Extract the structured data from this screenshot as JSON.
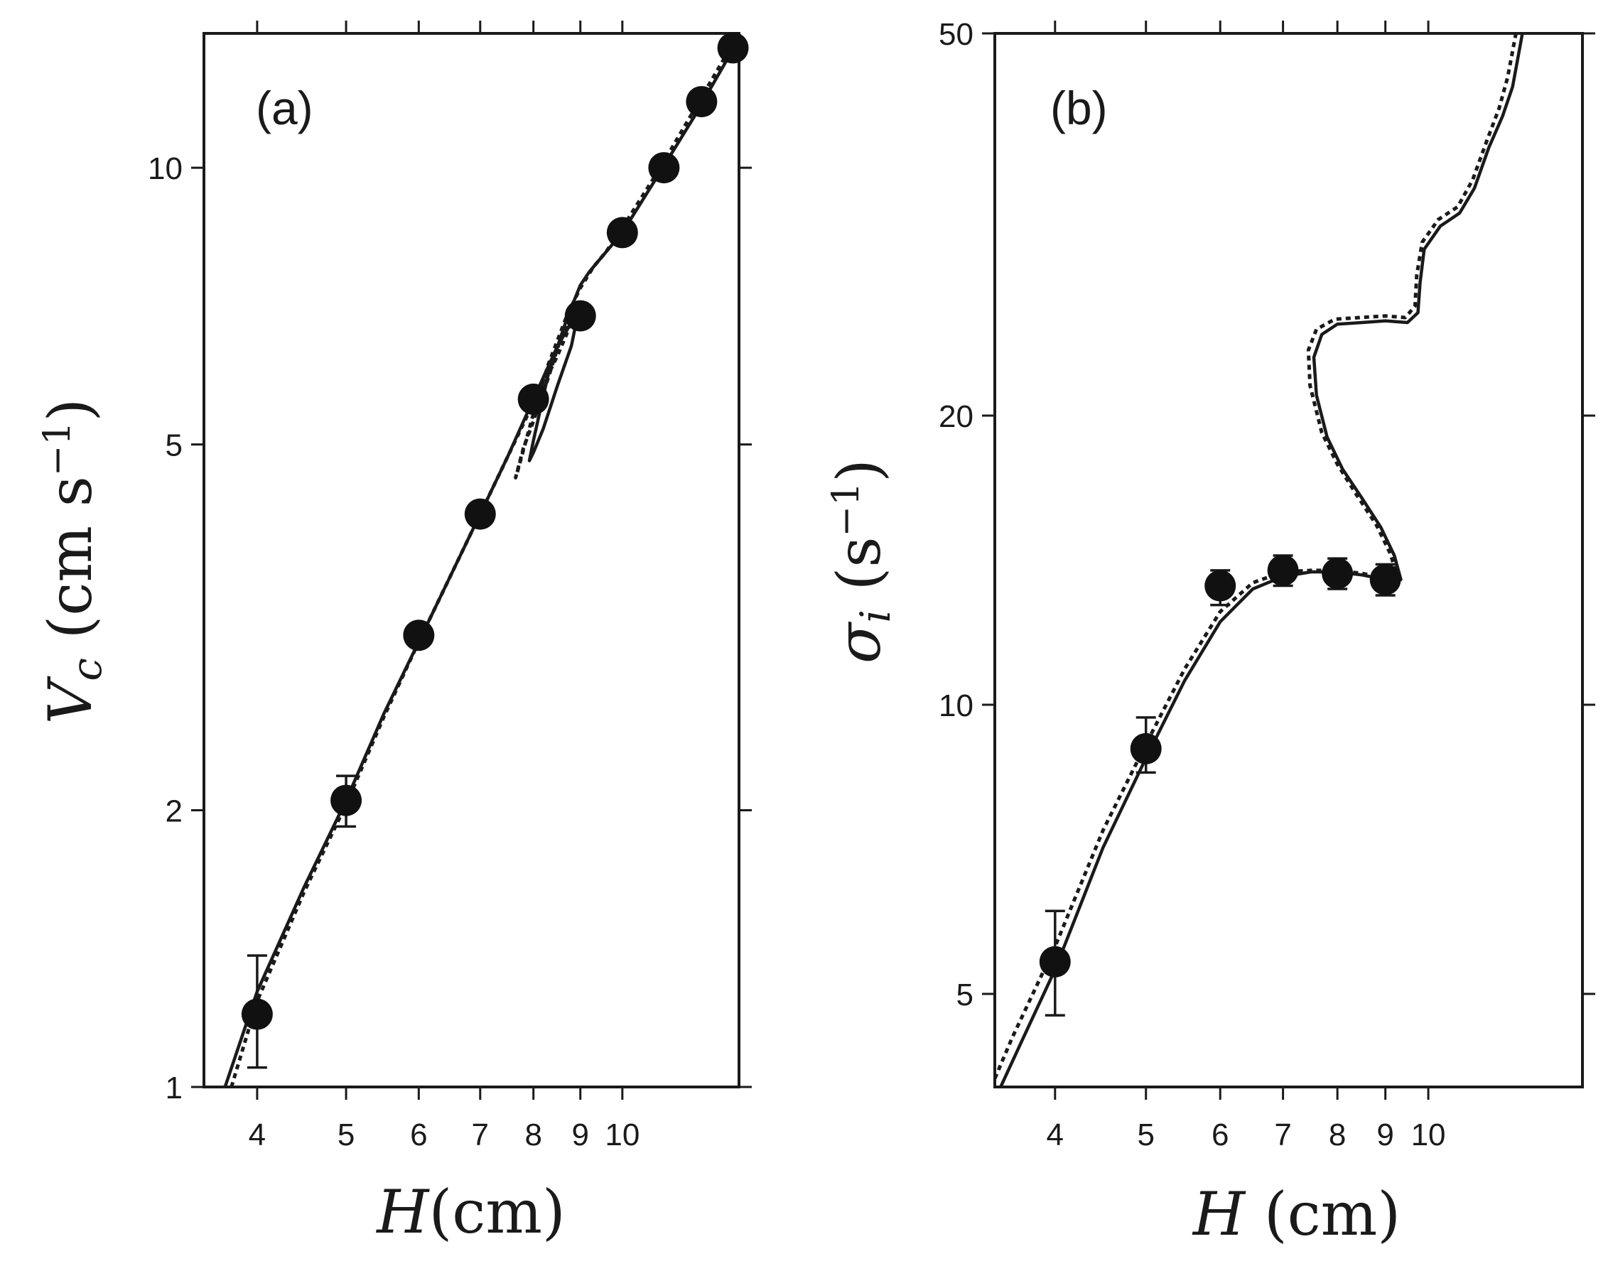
{
  "chart_data": [
    {
      "type": "line",
      "panel_label": "(a)",
      "xscale": "log",
      "yscale": "log",
      "xlim": [
        3.5,
        13.4
      ],
      "ylim": [
        1,
        14
      ],
      "x_ticks": [
        4,
        5,
        6,
        7,
        8,
        9,
        10
      ],
      "x_tick_labels": [
        "4",
        "5",
        "6",
        "7",
        "8",
        "9",
        "10"
      ],
      "y_ticks": [
        1,
        2,
        5,
        10
      ],
      "y_tick_labels": [
        "1",
        "2",
        "5",
        "10"
      ],
      "xlabel": {
        "sym": "H",
        "unit": "(cm)"
      },
      "ylabel": {
        "sym": "V",
        "sub": "c",
        "unit_open": " (cm s",
        "sup": "−1",
        "unit_close": ")"
      },
      "points": [
        {
          "x": 4.0,
          "y": 1.2,
          "err": [
            1.05,
            1.39
          ]
        },
        {
          "x": 5.0,
          "y": 2.05,
          "err": [
            1.92,
            2.18
          ]
        },
        {
          "x": 6.0,
          "y": 3.1
        },
        {
          "x": 7.0,
          "y": 4.2
        },
        {
          "x": 8.0,
          "y": 5.6
        },
        {
          "x": 9.0,
          "y": 6.9
        },
        {
          "x": 10.0,
          "y": 8.5
        },
        {
          "x": 11.1,
          "y": 10.0
        },
        {
          "x": 12.2,
          "y": 11.8
        },
        {
          "x": 13.2,
          "y": 13.5
        }
      ],
      "series": [
        {
          "name": "solid",
          "style": "solid",
          "x": [
            3.69,
            4.0,
            4.5,
            5.0,
            5.5,
            6.0,
            6.5,
            7.0,
            7.5,
            8.0,
            8.5,
            8.85,
            8.95,
            8.8,
            8.5,
            8.2,
            8.0,
            7.92,
            8.0,
            8.3,
            8.7,
            9.0,
            9.2,
            9.5,
            10.0,
            11.0,
            12.0,
            13.0,
            13.4
          ],
          "y": [
            1.0,
            1.27,
            1.65,
            2.05,
            2.55,
            3.05,
            3.6,
            4.2,
            4.85,
            5.6,
            6.4,
            6.85,
            6.95,
            6.4,
            5.8,
            5.2,
            4.9,
            4.8,
            5.05,
            5.95,
            6.85,
            7.45,
            7.7,
            8.0,
            8.5,
            9.9,
            11.4,
            13.1,
            14.0
          ]
        },
        {
          "name": "dotted",
          "style": "dotted",
          "x": [
            3.75,
            4.0,
            4.5,
            5.0,
            5.5,
            6.0,
            6.5,
            7.0,
            7.5,
            8.0,
            8.3,
            8.5,
            8.7,
            8.8,
            8.6,
            8.3,
            8.0,
            7.8,
            7.65,
            7.7,
            8.0,
            8.3,
            8.7,
            9.0,
            9.3,
            9.6,
            10.0,
            11.0,
            12.0,
            13.0,
            13.4
          ],
          "y": [
            1.0,
            1.24,
            1.63,
            2.03,
            2.53,
            3.05,
            3.6,
            4.2,
            4.85,
            5.55,
            5.95,
            6.25,
            6.6,
            6.85,
            6.6,
            5.9,
            5.3,
            4.95,
            4.6,
            4.7,
            5.4,
            6.1,
            6.9,
            7.4,
            7.8,
            8.1,
            8.6,
            10.0,
            11.6,
            13.3,
            14.0
          ]
        }
      ]
    },
    {
      "type": "line",
      "panel_label": "(b)",
      "xscale": "log",
      "yscale": "log",
      "xlim": [
        3.45,
        14.6
      ],
      "ylim": [
        4,
        50
      ],
      "x_ticks": [
        4,
        5,
        6,
        7,
        8,
        9,
        10
      ],
      "x_tick_labels": [
        "4",
        "5",
        "6",
        "7",
        "8",
        "9",
        "10"
      ],
      "y_ticks": [
        5,
        10,
        20,
        50
      ],
      "y_tick_labels": [
        "5",
        "10",
        "20",
        "50"
      ],
      "xlabel": {
        "sym": "H",
        "unit": " (cm)"
      },
      "ylabel": {
        "sym": "σ",
        "sub": "i",
        "unit_open": " (s",
        "sup": "−1",
        "unit_close": ")"
      },
      "points": [
        {
          "x": 4.0,
          "y": 5.4,
          "err": [
            4.75,
            6.1
          ]
        },
        {
          "x": 5.0,
          "y": 9.0,
          "err": [
            8.5,
            9.7
          ]
        },
        {
          "x": 6.0,
          "y": 13.3,
          "err": [
            12.7,
            13.8
          ]
        },
        {
          "x": 7.0,
          "y": 13.8,
          "err": [
            13.3,
            14.3
          ]
        },
        {
          "x": 8.0,
          "y": 13.7,
          "err": [
            13.2,
            14.2
          ]
        },
        {
          "x": 9.0,
          "y": 13.5,
          "err": [
            13.0,
            14.0
          ]
        }
      ],
      "series": [
        {
          "name": "solid",
          "style": "solid",
          "x": [
            3.5,
            3.7,
            4.0,
            4.5,
            5.0,
            5.5,
            6.0,
            6.5,
            7.0,
            7.5,
            8.0,
            8.5,
            9.0,
            9.35,
            9.2,
            8.9,
            8.5,
            8.1,
            7.8,
            7.6,
            7.55,
            7.7,
            8.0,
            8.5,
            9.0,
            9.5,
            9.75,
            9.8,
            9.9,
            10.3,
            10.8,
            11.2,
            11.6,
            12.0,
            12.3,
            12.6
          ],
          "y": [
            4.0,
            4.5,
            5.3,
            7.1,
            8.8,
            10.6,
            12.2,
            13.2,
            13.6,
            13.75,
            13.75,
            13.65,
            13.5,
            13.5,
            14.3,
            15.3,
            16.4,
            17.6,
            19.0,
            21.0,
            23.0,
            24.3,
            24.9,
            25.0,
            25.1,
            25.0,
            25.6,
            27.5,
            29.8,
            31.5,
            32.5,
            34.5,
            38.0,
            41.0,
            44.0,
            50.0
          ]
        },
        {
          "name": "dotted",
          "style": "dotted",
          "x": [
            3.42,
            3.6,
            4.0,
            4.5,
            5.0,
            5.5,
            6.0,
            6.5,
            7.0,
            7.5,
            8.0,
            8.5,
            9.0,
            9.3,
            9.1,
            8.8,
            8.4,
            8.0,
            7.7,
            7.48,
            7.45,
            7.6,
            7.95,
            8.45,
            9.0,
            9.45,
            9.68,
            9.72,
            9.85,
            10.25,
            10.75,
            11.15,
            11.55,
            11.9,
            12.15,
            12.4
          ],
          "y": [
            4.0,
            4.5,
            5.6,
            7.4,
            9.1,
            10.9,
            12.5,
            13.4,
            13.75,
            13.8,
            13.8,
            13.7,
            13.55,
            13.5,
            14.4,
            15.4,
            16.5,
            17.8,
            19.2,
            21.5,
            23.4,
            24.6,
            25.2,
            25.3,
            25.4,
            25.3,
            26.0,
            28.0,
            30.3,
            32.0,
            33.0,
            35.2,
            38.7,
            41.8,
            45.0,
            50.0
          ]
        }
      ]
    }
  ]
}
